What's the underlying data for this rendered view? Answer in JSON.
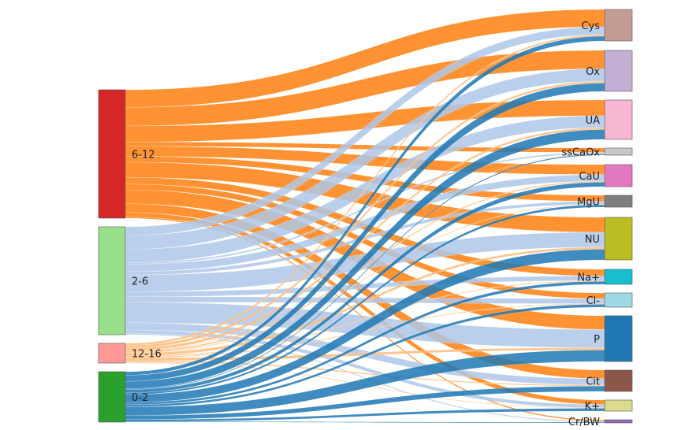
{
  "diagram": {
    "type": "sankey",
    "source_nodes": [
      {
        "id": "s612",
        "label": "6-12",
        "color": "#d62728"
      },
      {
        "id": "s26",
        "label": "2-6",
        "color": "#98df8a"
      },
      {
        "id": "s1216",
        "label": "12-16",
        "color": "#ff9896"
      },
      {
        "id": "s02",
        "label": "0-2",
        "color": "#2ca02c"
      }
    ],
    "target_nodes": [
      {
        "id": "Cys",
        "label": "Cys",
        "color": "#c49c94"
      },
      {
        "id": "Ox",
        "label": "Ox",
        "color": "#c5b0d5"
      },
      {
        "id": "UA",
        "label": "UA",
        "color": "#f7b6d2"
      },
      {
        "id": "ssCaOx",
        "label": "ssCaOx",
        "color": "#c7c7c7"
      },
      {
        "id": "CaU",
        "label": "CaU",
        "color": "#e377c2"
      },
      {
        "id": "MgU",
        "label": "MgU",
        "color": "#7f7f7f"
      },
      {
        "id": "NU",
        "label": "NU",
        "color": "#bcbd22"
      },
      {
        "id": "Na",
        "label": "Na+",
        "color": "#17becf"
      },
      {
        "id": "Cl",
        "label": "Cl-",
        "color": "#9edae5"
      },
      {
        "id": "P",
        "label": "P",
        "color": "#1f77b4"
      },
      {
        "id": "Cit",
        "label": "Cit",
        "color": "#8c564b"
      },
      {
        "id": "K",
        "label": "K+",
        "color": "#dbdb8d"
      },
      {
        "id": "CrBW",
        "label": "Cr/BW",
        "color": "#9467bd"
      }
    ],
    "link_colors": {
      "s612": "#ff7f0e",
      "s26": "#aec7e8",
      "s1216": "#ffbb78",
      "s02": "#1f77b4"
    }
  }
}
